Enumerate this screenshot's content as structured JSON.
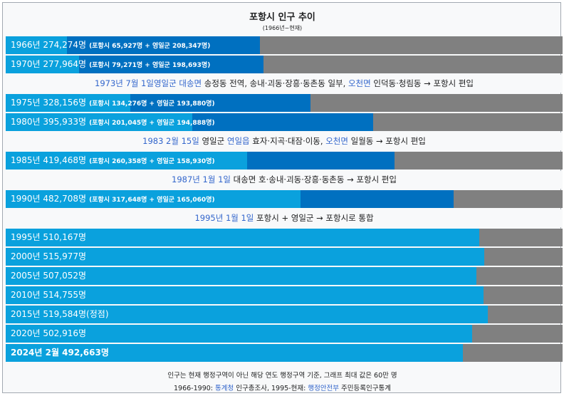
{
  "chart_data": {
    "type": "bar",
    "orientation": "horizontal",
    "stacked": true,
    "title": "포항시 인구 추이",
    "subtitle": "(1966년~현재)",
    "xlim": [
      0,
      600000
    ],
    "colors": {
      "pohang": "#0aa1dd",
      "yeongil": "#0070c0",
      "unified": "#0aa1dd",
      "background": "#808080"
    },
    "rows": [
      {
        "kind": "bar",
        "label": "1966년 274,274명",
        "detail": "(포항시 65,927명 + 영일군 208,347명)",
        "pohang": 65927,
        "yeongil": 208347,
        "total": 274274
      },
      {
        "kind": "bar",
        "label": "1970년 277,964명",
        "detail": "(포항시 79,271명 + 영일군 198,693명)",
        "pohang": 79271,
        "yeongil": 198693,
        "total": 277964
      },
      {
        "kind": "event",
        "date": "1973년 7월 1일",
        "parts": [
          {
            "text": "영일군",
            "link": true
          },
          {
            "text": " ",
            "link": false
          },
          {
            "text": "대송면",
            "link": true
          },
          {
            "text": " 송정동 전역, 송내·괴동·장흥·동촌동 일부, ",
            "link": false
          },
          {
            "text": "오천면",
            "link": true
          },
          {
            "text": " 인덕동·청림동 → 포항시 편입",
            "link": false
          }
        ]
      },
      {
        "kind": "bar",
        "label": "1975년 328,156명",
        "detail": "(포항시 134,276명 + 영일군 193,880명)",
        "pohang": 134276,
        "yeongil": 193880,
        "total": 328156
      },
      {
        "kind": "bar",
        "label": "1980년 395,933명",
        "detail": "(포항시 201,045명 + 영일군 194,888명)",
        "pohang": 201045,
        "yeongil": 194888,
        "total": 395933
      },
      {
        "kind": "event",
        "date": "1983 2월 15일",
        "parts": [
          {
            "text": " 영일군 ",
            "link": false
          },
          {
            "text": "연일읍",
            "link": true
          },
          {
            "text": " 효자·지곡·대잠·이동, ",
            "link": false
          },
          {
            "text": "오천면",
            "link": true
          },
          {
            "text": " 일월동 → 포항시 편입",
            "link": false
          }
        ]
      },
      {
        "kind": "bar",
        "label": "1985년 419,468명",
        "detail": "(포항시 260,358명 + 영일군 158,930명)",
        "pohang": 260358,
        "yeongil": 158930,
        "total": 419468
      },
      {
        "kind": "event",
        "date": "1987년 1월 1일",
        "parts": [
          {
            "text": " 대송면 호·송내·괴동·장흥·동촌동 → 포항시 편입",
            "link": false
          }
        ]
      },
      {
        "kind": "bar",
        "label": "1990년 482,708명",
        "detail": "(포항시 317,648명 + 영일군 165,060명)",
        "pohang": 317648,
        "yeongil": 165060,
        "total": 482708
      },
      {
        "kind": "event",
        "date": "1995년 1월 1일",
        "parts": [
          {
            "text": " 포항시 + 영일군 → 포항시로 통합",
            "link": false
          }
        ]
      },
      {
        "kind": "bar",
        "label": "1995년 510,167명",
        "detail": "",
        "total": 510167
      },
      {
        "kind": "bar",
        "label": "2000년 515,977명",
        "detail": "",
        "total": 515977
      },
      {
        "kind": "bar",
        "label": "2005년 507,052명",
        "detail": "",
        "total": 507052
      },
      {
        "kind": "bar",
        "label": "2010년 514,755명",
        "detail": "",
        "total": 514755
      },
      {
        "kind": "bar",
        "label": "2015년 519,584명(정점)",
        "detail": "",
        "total": 519584
      },
      {
        "kind": "bar",
        "label": "2020년 502,916명",
        "detail": "",
        "total": 502916
      },
      {
        "kind": "bar",
        "label": "2024년 2월 492,663명",
        "detail": "",
        "total": 492663,
        "bold": true
      }
    ],
    "footnote": "인구는 현재 행정구역이 아닌 해당 연도 행정구역 기준, 그래프 최대 값은 60만 명",
    "source_parts": [
      {
        "text": "1966-1990: ",
        "link": false
      },
      {
        "text": "통계청",
        "link": true
      },
      {
        "text": " 인구총조사, 1995-현재: ",
        "link": false
      },
      {
        "text": "행정안전부",
        "link": true
      },
      {
        "text": " 주민등록인구통계",
        "link": false
      }
    ]
  }
}
